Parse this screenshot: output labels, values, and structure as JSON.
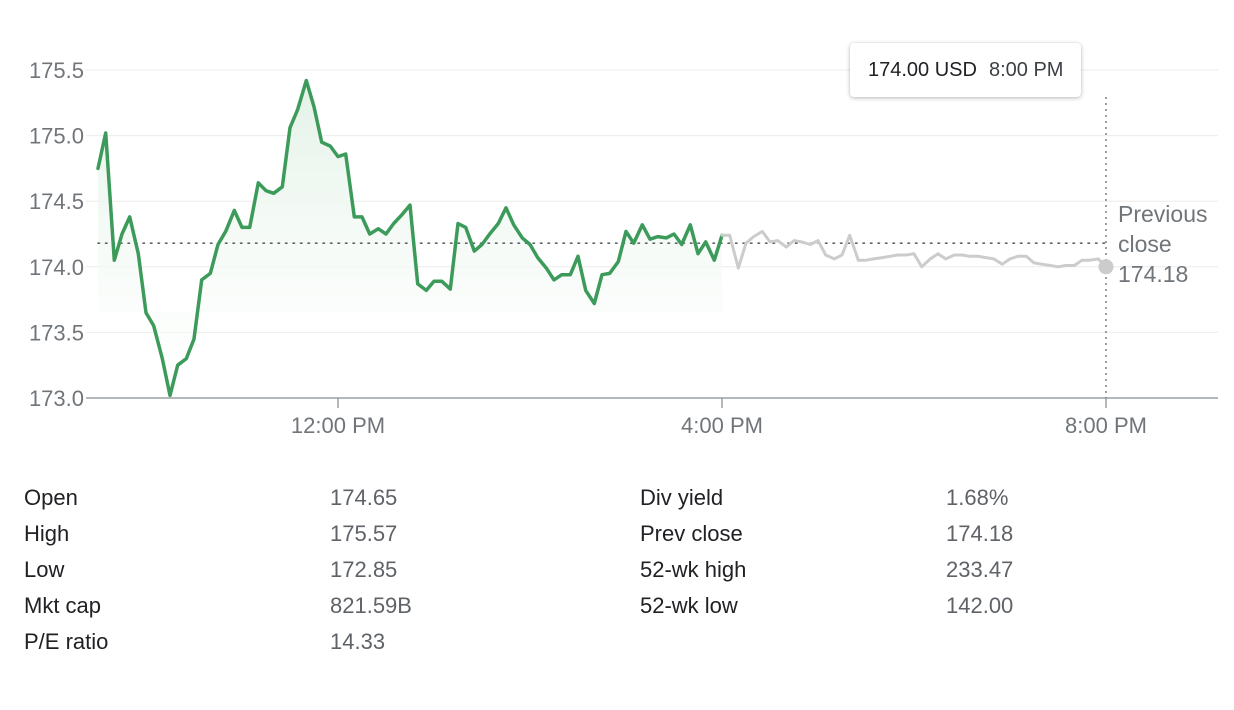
{
  "tooltip": {
    "price": "174.00 USD",
    "time": "8:00 PM"
  },
  "chart_data": {
    "type": "line",
    "ylim": [
      173.0,
      175.6
    ],
    "y_ticks": [
      173.0,
      173.5,
      174.0,
      174.5,
      175.0,
      175.5
    ],
    "y_tick_labels": [
      "173.0",
      "173.5",
      "174.0",
      "174.5",
      "175.0",
      "175.5"
    ],
    "x_ticks": [
      12,
      16,
      20
    ],
    "x_tick_labels": [
      "12:00 PM",
      "4:00 PM",
      "8:00 PM"
    ],
    "x_unit": "hour of day",
    "grid": true,
    "previous_close": {
      "label_line1": "Previous",
      "label_line2": "close",
      "value_label": "174.18",
      "value": 174.18
    },
    "colors": {
      "regular": "#3c9b5a",
      "after_hours": "#cccccc",
      "fill_top": "#e3f2e7",
      "marker": "#cccccc"
    },
    "series": [
      {
        "session": "regular",
        "x": [
          9.5,
          9.58,
          9.67,
          9.75,
          9.83,
          9.92,
          10.0,
          10.08,
          10.17,
          10.25,
          10.33,
          10.42,
          10.5,
          10.58,
          10.67,
          10.75,
          10.83,
          10.92,
          11.0,
          11.08,
          11.17,
          11.25,
          11.33,
          11.42,
          11.5,
          11.58,
          11.67,
          11.75,
          11.83,
          11.92,
          12.0,
          12.08,
          12.17,
          12.25,
          12.33,
          12.42,
          12.5,
          12.58,
          12.67,
          12.75,
          12.83,
          12.92,
          13.0,
          13.08,
          13.17,
          13.25,
          13.33,
          13.42,
          13.5,
          13.58,
          13.67,
          13.75,
          13.83,
          13.92,
          14.0,
          14.08,
          14.17,
          14.25,
          14.33,
          14.42,
          14.5,
          14.58,
          14.67,
          14.75,
          14.83,
          14.92,
          15.0,
          15.08,
          15.17,
          15.25,
          15.33,
          15.42,
          15.5,
          15.58,
          15.67,
          15.75,
          15.83,
          15.92,
          16.0
        ],
        "values": [
          174.75,
          175.02,
          174.05,
          174.25,
          174.38,
          174.1,
          173.65,
          173.55,
          173.3,
          173.02,
          173.25,
          173.3,
          173.45,
          173.9,
          173.95,
          174.17,
          174.27,
          174.43,
          174.3,
          174.3,
          174.64,
          174.58,
          174.56,
          174.61,
          175.06,
          175.2,
          175.42,
          175.22,
          174.95,
          174.92,
          174.84,
          174.86,
          174.38,
          174.38,
          174.25,
          174.29,
          174.25,
          174.33,
          174.4,
          174.47,
          173.87,
          173.82,
          173.89,
          173.89,
          173.83,
          174.33,
          174.3,
          174.12,
          174.17,
          174.25,
          174.33,
          174.45,
          174.32,
          174.22,
          174.17,
          174.07,
          173.99,
          173.9,
          173.94,
          173.94,
          174.08,
          173.82,
          173.72,
          173.94,
          173.95,
          174.04,
          174.27,
          174.18,
          174.32,
          174.21,
          174.23,
          174.22,
          174.25,
          174.17,
          174.32,
          174.1,
          174.19,
          174.05,
          174.24
        ]
      },
      {
        "session": "after_hours",
        "x": [
          16.0,
          16.08,
          16.17,
          16.25,
          16.33,
          16.42,
          16.5,
          16.58,
          16.67,
          16.75,
          16.83,
          16.92,
          17.0,
          17.08,
          17.17,
          17.25,
          17.33,
          17.42,
          17.5,
          17.58,
          17.67,
          17.75,
          17.83,
          17.92,
          18.0,
          18.08,
          18.17,
          18.25,
          18.33,
          18.42,
          18.5,
          18.58,
          18.67,
          18.75,
          18.83,
          18.92,
          19.0,
          19.08,
          19.17,
          19.25,
          19.33,
          19.42,
          19.5,
          19.58,
          19.67,
          19.75,
          19.83,
          19.92,
          20.0
        ],
        "values": [
          174.24,
          174.24,
          173.99,
          174.18,
          174.23,
          174.27,
          174.19,
          174.2,
          174.15,
          174.2,
          174.19,
          174.17,
          174.2,
          174.09,
          174.06,
          174.09,
          174.24,
          174.05,
          174.05,
          174.06,
          174.07,
          174.08,
          174.09,
          174.09,
          174.1,
          174.0,
          174.06,
          174.1,
          174.06,
          174.09,
          174.09,
          174.08,
          174.08,
          174.07,
          174.06,
          174.02,
          174.06,
          174.08,
          174.08,
          174.03,
          174.02,
          174.01,
          174.0,
          174.01,
          174.01,
          174.05,
          174.05,
          174.06,
          174.0
        ]
      }
    ]
  },
  "stats": {
    "left": [
      {
        "label": "Open",
        "value": "174.65"
      },
      {
        "label": "High",
        "value": "175.57"
      },
      {
        "label": "Low",
        "value": "172.85"
      },
      {
        "label": "Mkt cap",
        "value": "821.59B"
      },
      {
        "label": "P/E ratio",
        "value": "14.33"
      }
    ],
    "right": [
      {
        "label": "Div yield",
        "value": "1.68%"
      },
      {
        "label": "Prev close",
        "value": "174.18"
      },
      {
        "label": "52-wk high",
        "value": "233.47"
      },
      {
        "label": "52-wk low",
        "value": "142.00"
      }
    ]
  }
}
